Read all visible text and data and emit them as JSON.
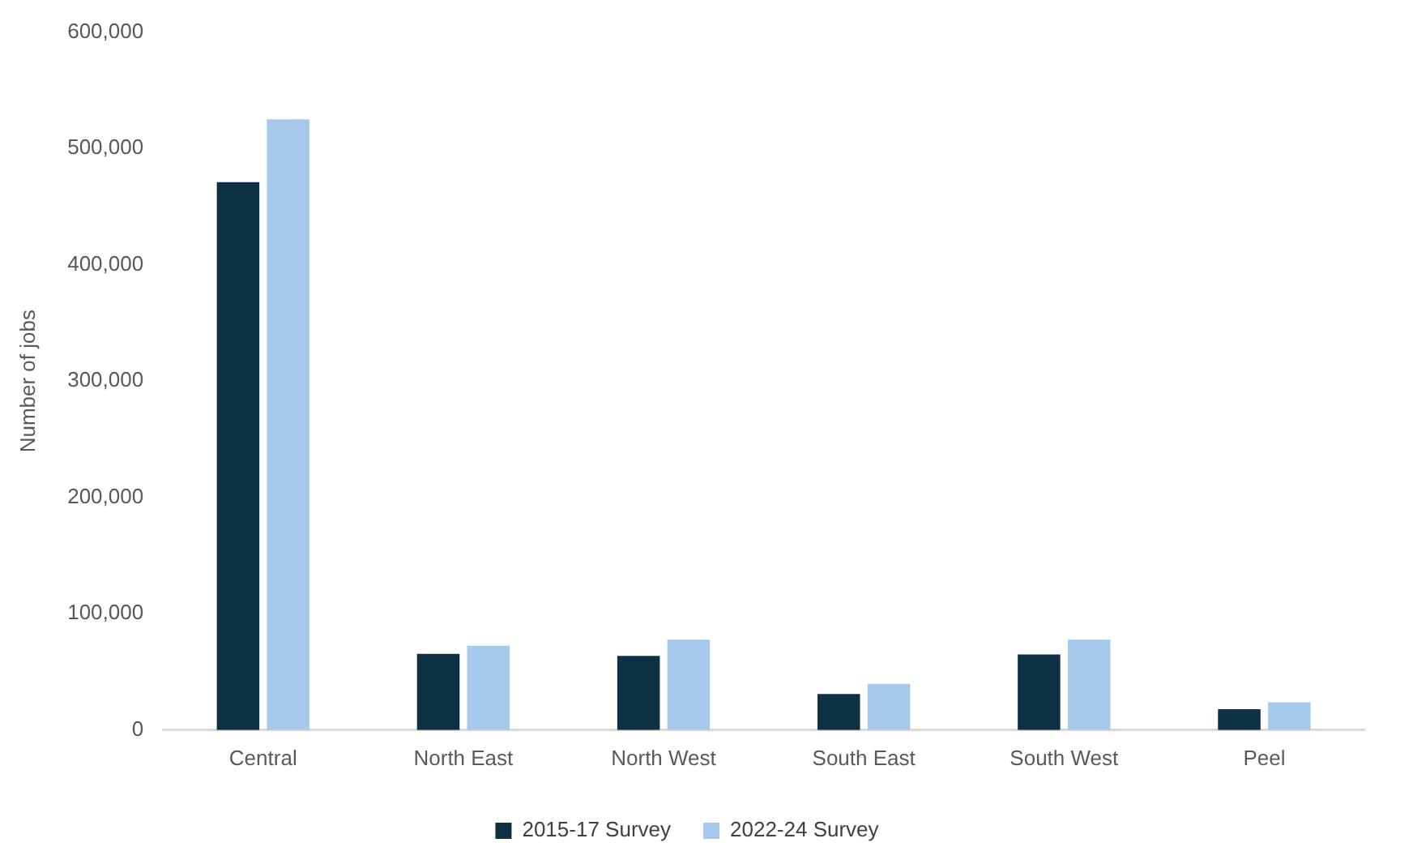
{
  "chart_data": {
    "type": "bar",
    "ylabel": "Number of jobs",
    "categories": [
      "Central",
      "North East",
      "North West",
      "South East",
      "South West",
      "Peel"
    ],
    "series": [
      {
        "name": "2015-17 Survey",
        "color": "#0d3042",
        "values": [
          471000,
          65500,
          63700,
          31000,
          65000,
          18000
        ]
      },
      {
        "name": "2022-24 Survey",
        "color": "#a6c9eb",
        "values": [
          525000,
          72500,
          77800,
          39800,
          77800,
          23900
        ]
      }
    ],
    "ylim": [
      0,
      600000
    ],
    "yticks": [
      {
        "value": 0,
        "label": "0"
      },
      {
        "value": 100000,
        "label": "100,000"
      },
      {
        "value": 200000,
        "label": "200,000"
      },
      {
        "value": 300000,
        "label": "300,000"
      },
      {
        "value": 400000,
        "label": "400,000"
      },
      {
        "value": 500000,
        "label": "500,000"
      },
      {
        "value": 600000,
        "label": "600,000"
      }
    ],
    "grid": false,
    "legend": "bottom"
  }
}
